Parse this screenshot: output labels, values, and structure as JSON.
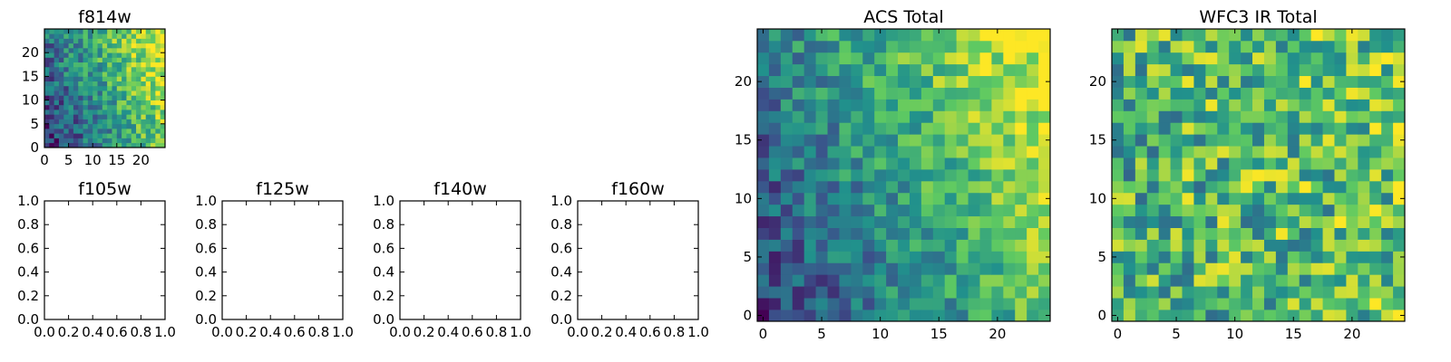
{
  "figure": {
    "background": "#ffffff"
  },
  "colormap": {
    "name": "viridis",
    "stops": [
      "#440154",
      "#3b528b",
      "#21918c",
      "#5ec962",
      "#fde725"
    ]
  },
  "chart_data": [
    {
      "id": "f814w",
      "type": "heatmap",
      "title": "f814w",
      "xlim": [
        0,
        25
      ],
      "ylim": [
        0,
        25
      ],
      "xticks": [
        0,
        5,
        10,
        15,
        20
      ],
      "yticks": [
        0,
        5,
        10,
        15,
        20
      ],
      "grid_size": [
        25,
        25
      ],
      "value_range": [
        0,
        1
      ],
      "field": {
        "base": 0.15,
        "x_gain": 0.6,
        "y_gain": 0.25,
        "noise": 0.22,
        "seed": 814
      }
    },
    {
      "id": "f105w",
      "type": "empty",
      "title": "f105w",
      "xlim": [
        0,
        1
      ],
      "ylim": [
        0,
        1
      ],
      "xtick_labels": [
        "0.0",
        "0.2",
        "0.4",
        "0.6",
        "0.8",
        "1.0"
      ],
      "ytick_labels": [
        "0.0",
        "0.2",
        "0.4",
        "0.6",
        "0.8",
        "1.0"
      ]
    },
    {
      "id": "f125w",
      "type": "empty",
      "title": "f125w",
      "xlim": [
        0,
        1
      ],
      "ylim": [
        0,
        1
      ],
      "xtick_labels": [
        "0.0",
        "0.2",
        "0.4",
        "0.6",
        "0.8",
        "1.0"
      ],
      "ytick_labels": [
        "0.0",
        "0.2",
        "0.4",
        "0.6",
        "0.8",
        "1.0"
      ]
    },
    {
      "id": "f140w",
      "type": "empty",
      "title": "f140w",
      "xlim": [
        0,
        1
      ],
      "ylim": [
        0,
        1
      ],
      "xtick_labels": [
        "0.0",
        "0.2",
        "0.4",
        "0.6",
        "0.8",
        "1.0"
      ],
      "ytick_labels": [
        "0.0",
        "0.2",
        "0.4",
        "0.6",
        "0.8",
        "1.0"
      ]
    },
    {
      "id": "f160w",
      "type": "empty",
      "title": "f160w",
      "xlim": [
        0,
        1
      ],
      "ylim": [
        0,
        1
      ],
      "xtick_labels": [
        "0.0",
        "0.2",
        "0.4",
        "0.6",
        "0.8",
        "1.0"
      ],
      "ytick_labels": [
        "0.0",
        "0.2",
        "0.4",
        "0.6",
        "0.8",
        "1.0"
      ]
    },
    {
      "id": "acs_total",
      "type": "heatmap",
      "title": "ACS Total",
      "xlim": [
        -0.5,
        24.5
      ],
      "ylim": [
        -0.5,
        24.5
      ],
      "xticks": [
        0,
        5,
        10,
        15,
        20
      ],
      "yticks": [
        0,
        5,
        10,
        15,
        20
      ],
      "grid_size": [
        25,
        25
      ],
      "value_range": [
        0,
        1
      ],
      "field": {
        "base": 0.18,
        "x_gain": 0.55,
        "y_gain": 0.25,
        "noise": 0.2,
        "seed": 2021
      }
    },
    {
      "id": "wfc3_ir_total",
      "type": "heatmap",
      "title": "WFC3 IR Total",
      "xlim": [
        -0.5,
        24.5
      ],
      "ylim": [
        -0.5,
        24.5
      ],
      "xticks": [
        0,
        5,
        10,
        15,
        20
      ],
      "yticks": [
        0,
        5,
        10,
        15,
        20
      ],
      "grid_size": [
        25,
        25
      ],
      "value_range": [
        0,
        1
      ],
      "field": {
        "base": 0.62,
        "x_gain": 0.08,
        "y_gain": 0.05,
        "noise": 0.32,
        "seed": 3160
      }
    }
  ]
}
